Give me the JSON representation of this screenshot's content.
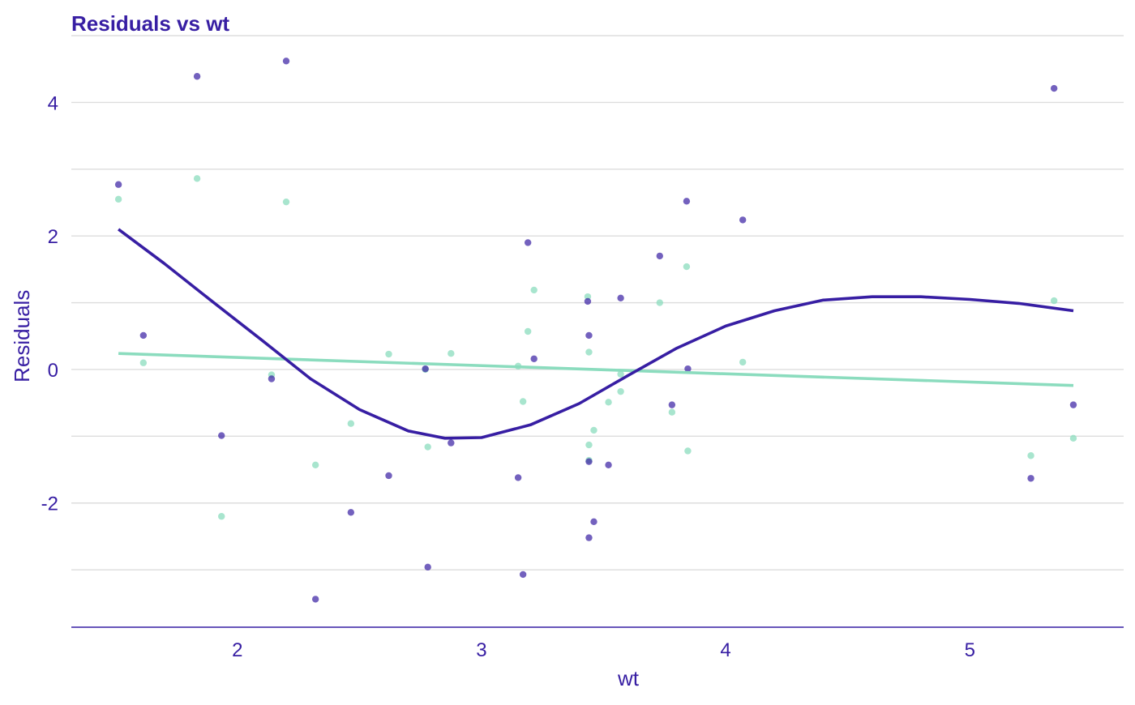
{
  "chart_data": {
    "type": "scatter",
    "title": "Residuals vs wt",
    "xlabel": "wt",
    "ylabel": "Residuals",
    "xlim": [
      1.32,
      5.63
    ],
    "ylim": [
      -3.86,
      5.0
    ],
    "xticks": [
      2,
      3,
      4,
      5
    ],
    "yticks": [
      -2,
      0,
      2,
      4
    ],
    "grid": "horizontal",
    "legend": "none",
    "colors": {
      "title": "#371ea3",
      "axis_text": "#371ea3",
      "axis_line": "#371ea3",
      "grid": "#dddddd",
      "series_dark": "#371ea3",
      "series_light": "#8bdcbe"
    },
    "series": [
      {
        "color": "#371ea3",
        "points": [
          {
            "x": 1.513,
            "y": 2.77
          },
          {
            "x": 1.615,
            "y": 0.51
          },
          {
            "x": 1.835,
            "y": 4.39
          },
          {
            "x": 1.935,
            "y": -0.99
          },
          {
            "x": 2.14,
            "y": -0.14
          },
          {
            "x": 2.2,
            "y": 4.62
          },
          {
            "x": 2.32,
            "y": -3.44
          },
          {
            "x": 2.465,
            "y": -2.14
          },
          {
            "x": 2.62,
            "y": -1.59
          },
          {
            "x": 2.77,
            "y": 0.01
          },
          {
            "x": 2.78,
            "y": -2.96
          },
          {
            "x": 2.875,
            "y": -1.1
          },
          {
            "x": 3.15,
            "y": -1.62
          },
          {
            "x": 3.17,
            "y": -3.07
          },
          {
            "x": 3.19,
            "y": 1.9
          },
          {
            "x": 3.215,
            "y": 0.16
          },
          {
            "x": 3.435,
            "y": 1.02
          },
          {
            "x": 3.44,
            "y": 0.51
          },
          {
            "x": 3.44,
            "y": -1.38
          },
          {
            "x": 3.44,
            "y": -2.52
          },
          {
            "x": 3.46,
            "y": -2.28
          },
          {
            "x": 3.52,
            "y": -1.43
          },
          {
            "x": 3.57,
            "y": 1.07
          },
          {
            "x": 3.73,
            "y": 1.7
          },
          {
            "x": 3.78,
            "y": -0.53
          },
          {
            "x": 3.84,
            "y": 2.52
          },
          {
            "x": 3.845,
            "y": 0.01
          },
          {
            "x": 4.07,
            "y": 2.24
          },
          {
            "x": 5.25,
            "y": -1.63
          },
          {
            "x": 5.345,
            "y": 4.21
          },
          {
            "x": 5.424,
            "y": -0.53
          }
        ]
      },
      {
        "color": "#8bdcbe",
        "points": [
          {
            "x": 1.513,
            "y": 2.55
          },
          {
            "x": 1.615,
            "y": 0.1
          },
          {
            "x": 1.835,
            "y": 2.86
          },
          {
            "x": 1.935,
            "y": -2.2
          },
          {
            "x": 2.14,
            "y": -0.08
          },
          {
            "x": 2.2,
            "y": 2.51
          },
          {
            "x": 2.32,
            "y": -1.43
          },
          {
            "x": 2.465,
            "y": -0.81
          },
          {
            "x": 2.62,
            "y": 0.23
          },
          {
            "x": 2.77,
            "y": 0.0
          },
          {
            "x": 2.78,
            "y": -1.16
          },
          {
            "x": 2.875,
            "y": 0.24
          },
          {
            "x": 3.15,
            "y": 0.05
          },
          {
            "x": 3.17,
            "y": -0.48
          },
          {
            "x": 3.19,
            "y": 0.57
          },
          {
            "x": 3.215,
            "y": 1.19
          },
          {
            "x": 3.435,
            "y": 1.09
          },
          {
            "x": 3.44,
            "y": 0.26
          },
          {
            "x": 3.44,
            "y": -1.13
          },
          {
            "x": 3.44,
            "y": -1.36
          },
          {
            "x": 3.46,
            "y": -0.91
          },
          {
            "x": 3.52,
            "y": -0.49
          },
          {
            "x": 3.57,
            "y": -0.07
          },
          {
            "x": 3.57,
            "y": -0.33
          },
          {
            "x": 3.73,
            "y": 1.0
          },
          {
            "x": 3.78,
            "y": -0.64
          },
          {
            "x": 3.84,
            "y": 1.54
          },
          {
            "x": 3.845,
            "y": -1.22
          },
          {
            "x": 4.07,
            "y": 0.11
          },
          {
            "x": 5.25,
            "y": -1.29
          },
          {
            "x": 5.345,
            "y": 1.03
          },
          {
            "x": 5.424,
            "y": -1.03
          }
        ]
      }
    ],
    "fit_lines": [
      {
        "color": "#371ea3",
        "kind": "smooth",
        "points": [
          {
            "x": 1.513,
            "y": 2.1
          },
          {
            "x": 1.7,
            "y": 1.59
          },
          {
            "x": 1.9,
            "y": 1.01
          },
          {
            "x": 2.1,
            "y": 0.44
          },
          {
            "x": 2.3,
            "y": -0.14
          },
          {
            "x": 2.5,
            "y": -0.6
          },
          {
            "x": 2.7,
            "y": -0.92
          },
          {
            "x": 2.85,
            "y": -1.03
          },
          {
            "x": 3.0,
            "y": -1.02
          },
          {
            "x": 3.2,
            "y": -0.83
          },
          {
            "x": 3.4,
            "y": -0.51
          },
          {
            "x": 3.6,
            "y": -0.09
          },
          {
            "x": 3.8,
            "y": 0.32
          },
          {
            "x": 4.0,
            "y": 0.65
          },
          {
            "x": 4.2,
            "y": 0.88
          },
          {
            "x": 4.4,
            "y": 1.04
          },
          {
            "x": 4.6,
            "y": 1.09
          },
          {
            "x": 4.8,
            "y": 1.09
          },
          {
            "x": 5.0,
            "y": 1.05
          },
          {
            "x": 5.2,
            "y": 0.99
          },
          {
            "x": 5.424,
            "y": 0.88
          }
        ]
      },
      {
        "color": "#8bdcbe",
        "kind": "linear",
        "points": [
          {
            "x": 1.513,
            "y": 0.24
          },
          {
            "x": 5.424,
            "y": -0.24
          }
        ]
      }
    ]
  }
}
